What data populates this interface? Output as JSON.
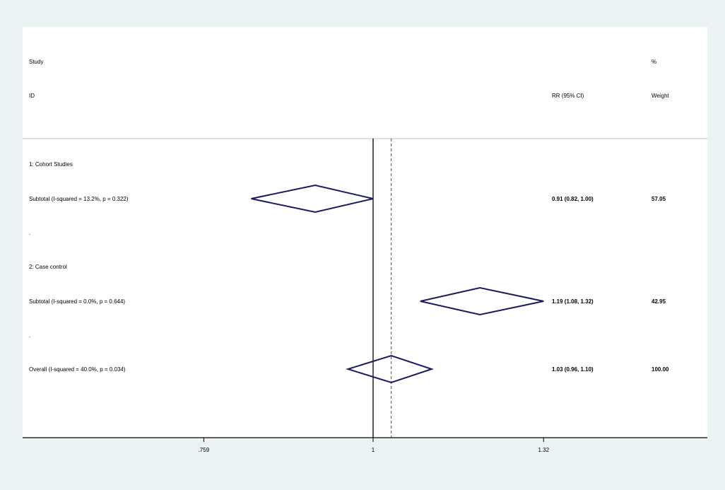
{
  "chart_data": {
    "type": "forest",
    "header": {
      "study_line1": "Study",
      "study_line2": "ID",
      "effect_label": "RR (95% CI)",
      "weight_line1": "%",
      "weight_line2": "Weight"
    },
    "x_scale": "log",
    "xlim": [
      0.68,
      1.45
    ],
    "x_ticks": [
      {
        "value": 0.759,
        "label": ".759"
      },
      {
        "value": 1,
        "label": "1"
      },
      {
        "value": 1.32,
        "label": "1.32"
      }
    ],
    "null_line": 1,
    "overall_line": 1.03,
    "rows": [
      {
        "kind": "group",
        "label": "1: Cohort Studies"
      },
      {
        "kind": "subtotal",
        "label": "Subtotal  (I-squared = 13.2%, p = 0.322)",
        "est": 0.91,
        "lo": 0.82,
        "hi": 1.0,
        "ci_text": "0.91 (0.82, 1.00)",
        "weight": "57.05"
      },
      {
        "kind": "spacer",
        "label": "."
      },
      {
        "kind": "group",
        "label": "2: Case control"
      },
      {
        "kind": "subtotal",
        "label": "Subtotal  (I-squared = 0.0%, p = 0.644)",
        "est": 1.19,
        "lo": 1.08,
        "hi": 1.32,
        "ci_text": "1.19 (1.08, 1.32)",
        "weight": "42.95"
      },
      {
        "kind": "spacer",
        "label": "."
      },
      {
        "kind": "overall",
        "label": "Overall  (I-squared = 40.0%, p = 0.034)",
        "est": 1.03,
        "lo": 0.96,
        "hi": 1.1,
        "ci_text": "1.03 (0.96, 1.10)",
        "weight": "100.00"
      }
    ],
    "colors": {
      "background": "#eaf2f3",
      "panel": "#ffffff",
      "diamond": "#1a1a5e",
      "overall_line": "#b22222",
      "axis": "#000000"
    }
  }
}
